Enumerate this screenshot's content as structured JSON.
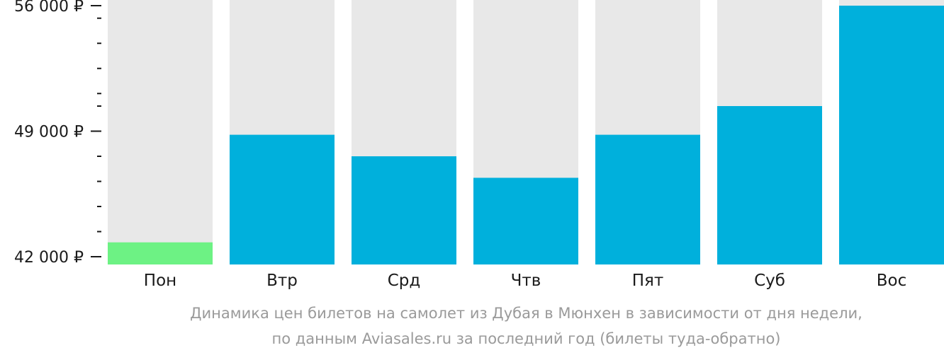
{
  "chart_data": {
    "type": "bar",
    "categories": [
      "Пон",
      "Втр",
      "Срд",
      "Чтв",
      "Пят",
      "Суб",
      "Вос"
    ],
    "values": [
      42800,
      48800,
      47600,
      46400,
      48800,
      50400,
      56000
    ],
    "ylim": [
      42000,
      56200
    ],
    "y_ticks": [
      {
        "value": 56000,
        "label": "56 000 ₽"
      },
      {
        "value": 49000,
        "label": "49 000 ₽"
      },
      {
        "value": 42000,
        "label": "42 000 ₽"
      }
    ],
    "y_minor_ticks": [
      55300,
      53900,
      52500,
      51100,
      50400,
      47600,
      46200,
      44800,
      43400
    ],
    "colors": {
      "bar": "#00b0dc",
      "lowest_bar": "#6df284",
      "background_column": "#e8e8e8",
      "axis_text": "#1a1a1a"
    },
    "lowest_category": "Пон",
    "caption_line1": "Динамика цен билетов на самолет из Дубая в Мюнхен в зависимости от дня недели,",
    "caption_line2": "по данным Aviasales.ru за последний год (билеты туда-обратно)"
  }
}
